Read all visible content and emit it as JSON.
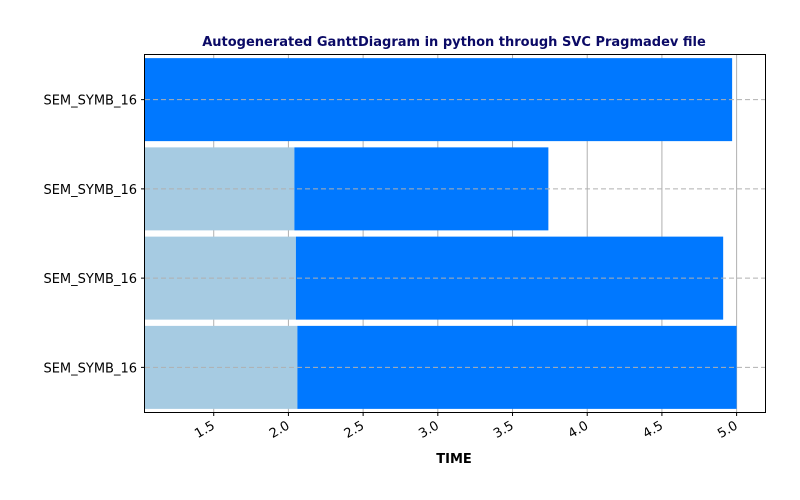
{
  "chart_data": {
    "type": "bar",
    "orientation": "horizontal",
    "stacked": true,
    "title": "Autogenerated GanttDiagram in python through SVC Pragmadev file",
    "xlabel": "TIME",
    "ylabel": "",
    "xlim": [
      1.04,
      5.19
    ],
    "x_ticks": [
      "1.5",
      "2.0",
      "2.5",
      "3.0",
      "3.5",
      "4.0",
      "4.5",
      "5.0"
    ],
    "x_tick_values": [
      1.5,
      2.0,
      2.5,
      3.0,
      3.5,
      4.0,
      4.5,
      5.0
    ],
    "categories": [
      "SEM_SYMB_16",
      "SEM_SYMB_16",
      "SEM_SYMB_16",
      "SEM_SYMB_16"
    ],
    "segments": [
      {
        "row": 0,
        "start": 1.04,
        "end": 4.97,
        "color": "#0078ff"
      },
      {
        "row": 1,
        "start": 1.04,
        "end": 2.04,
        "color": "#a6cbe2"
      },
      {
        "row": 1,
        "start": 2.04,
        "end": 3.74,
        "color": "#0078ff"
      },
      {
        "row": 2,
        "start": 1.04,
        "end": 2.05,
        "color": "#a6cbe2"
      },
      {
        "row": 2,
        "start": 2.05,
        "end": 4.91,
        "color": "#0078ff"
      },
      {
        "row": 3,
        "start": 1.04,
        "end": 2.06,
        "color": "#a6cbe2"
      },
      {
        "row": 3,
        "start": 2.06,
        "end": 5.0,
        "color": "#0078ff"
      }
    ],
    "grid": {
      "x": "solid",
      "y": "dashed"
    },
    "colors": {
      "title": "#0b0a66",
      "waiting": "#a6cbe2",
      "active": "#0078ff",
      "grid": "#b0b0b0"
    }
  }
}
